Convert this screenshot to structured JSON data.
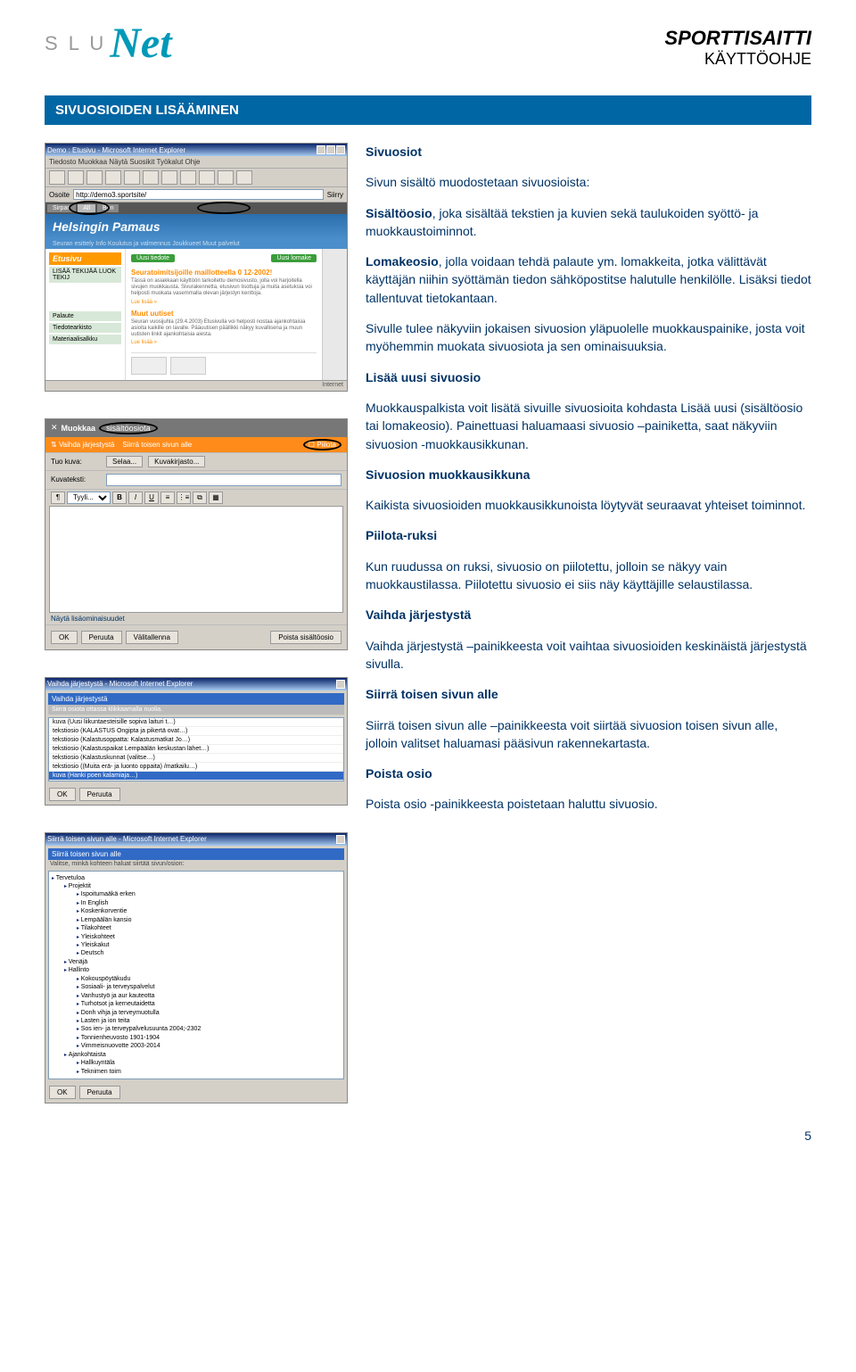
{
  "header": {
    "brand_slu": "S L U",
    "brand_net": "Net",
    "title1": "SPORTTISAITTI",
    "title2": "KÄYTTÖOHJE"
  },
  "section_bar": "SIVUOSIOIDEN LISÄÄMINEN",
  "body": {
    "h1": "Sivuosiot",
    "p1a": "Sivun sisältö muodostetaan sivuosioista:",
    "p2": "Sisältöosio, joka sisältää tekstien ja  kuvien sekä taulukoiden syöttö- ja muokkaustoiminnot.",
    "p3": "Lomakeosio, jolla voidaan tehdä palaute ym. lomakkeita, jotka välittävät käyttäjän niihin syöttämän tiedon sähköpostitse halutulle henkilölle. Lisäksi tiedot tallentuvat tietokantaan.",
    "p4": "Sivulle tulee näkyviin jokaisen sivuosion yläpuolelle muokkauspainike, josta voit myöhemmin muokata sivuosiota ja sen ominaisuuksia.",
    "h2": "Lisää uusi sivuosio",
    "p5": "Muokkauspalkista voit lisätä sivuille sivuosioita kohdasta Lisää uusi (sisältöosio tai lomakeosio). Painettuasi haluamaasi sivuosio –painiketta, saat näkyviin sivuosion -muokkausikkunan.",
    "h3": "Sivuosion muokkausikkuna",
    "p6": "Kaikista sivuosioiden muokkausikkunoista löytyvät seuraavat yhteiset toiminnot.",
    "h4": "Piilota-ruksi",
    "p7": "Kun ruudussa on ruksi, sivuosio on piilotettu, jolloin se näkyy vain muokkaustilassa. Piilotettu sivuosio ei siis näy käyttäjille selaustilassa.",
    "h5": "Vaihda järjestystä",
    "p8": "Vaihda järjestystä –painikkeesta voit vaihtaa sivuosioiden keskinäistä järjestystä sivulla.",
    "h6": "Siirrä toisen sivun alle",
    "p9": "Siirrä toisen sivun alle –painikkeesta voit siirtää sivuosion toisen sivun alle, jolloin valitset haluamasi pääsivun rakennekartasta.",
    "h7": "Poista osio",
    "p10": "Poista osio -painikkeesta poistetaan haluttu sivuosio."
  },
  "scr1": {
    "title": "Demo : Etusivu - Microsoft Internet Explorer",
    "menu": "Tiedosto  Muokkaa  Näytä  Suosikit  Työkalut  Ohje",
    "addr_label": "Osoite",
    "addr_value": "http://demo3.sportsite/",
    "go": "Siirry",
    "tabs": [
      "Sirpan",
      "All",
      "Ben"
    ],
    "banner": "Helsingin Pamaus",
    "nav": "Seuran esittely    Info    Koulutus ja valmennus    Joukkueet    Muut palvelut",
    "side_title": "Etusivu",
    "side_items": [
      "LISÄÄ TEKIJÄÄ LUOK TEKIJ",
      "Palaute",
      "Tiedotearkisto",
      "Materiaalisalkku"
    ],
    "green1": "Uusi tiedote",
    "green2": "Uusi lomake",
    "content_h1": "Seuratoimitsijoille maillotteella 0 12-2002!",
    "content_t1": "Tässä on asiakkaan käyttöön tarkoitettu demosivusto, jolla voi harjoitella sivujen muokkausta. Sivurakennetta, etusivun lisottuja ja muita asetuksia voi helposti muokata vasemmalla olevan järjestyn kenttoja.",
    "content_link": "Lue lisää »",
    "content_h2": "Muut uutiset",
    "content_t2": "Seuran vuosijuhla (29.4.2003) Etusivulla voi helposti nostaa ajankohtaisia asioita kaikille on lavalle. Pääuutisen päällikki näkyy kuvallisena ja muun uutisten linkit ajankohtaisia aiesta.",
    "content_link2": "Lue lisää »",
    "footer": "Internet"
  },
  "scr2": {
    "hdr_icon": "✕",
    "hdr_label": "Muokkaa",
    "hdr_label2": "sisältöosiota",
    "orange_left_icon": "⇅",
    "orange_left": "Vaihda järjestystä",
    "orange_mid": "Siirrä toisen sivun alle",
    "orange_right": "Piilota",
    "row1_label": "Tuo kuva:",
    "row1_btn1": "Selaa...",
    "row1_btn2": "Kuvakirjasto...",
    "row2_label": "Kuvateksti:",
    "fmt_sel": "Tyyli...",
    "link_more": "Näytä lisäominaisuudet",
    "btn_ok": "OK",
    "btn_cancel": "Peruuta",
    "btn_save": "Välitallenna",
    "btn_delete": "Poista sisältöosio"
  },
  "scr3": {
    "title": "Vaihda järjestystä - Microsoft Internet Explorer",
    "bar": "Vaihda järjestystä",
    "hint": "Siirrä osiota ottassa klikkaamalla nuolia.",
    "items": [
      "kuva          (Uusi liikuntaesteisille sopiva laituri t…)",
      "tekstiosio    (KALASTUS Ongipta ja pikertä ovat…)",
      "tekstiosio    (Kalastusoppatta: Kalastusmatkat Jo…)",
      "tekstiosio    (Kalastuspaikat Lempäälän keskustan lähet…)",
      "tekstiosio    (Kalastuskunnat (valitse…)",
      "tekstiosio    ((Muita erä- ja luonto oppaita) /matkailu…)",
      "kuva          (Hanki poen kalamiaja…)"
    ],
    "highlight_idx": 6,
    "btn_ok": "OK",
    "btn_cancel": "Peruuta"
  },
  "scr4": {
    "title": "Siirrä toisen sivun alle - Microsoft Internet Explorer",
    "bar": "Siirrä toisen sivun alle",
    "hint": "Valitse, minkä kohteen haluat siirtää sivun/osion:",
    "tree": [
      {
        "lv": 0,
        "t": "Tervetuloa"
      },
      {
        "lv": 1,
        "t": "Projektit"
      },
      {
        "lv": 2,
        "t": "Ispoitumaäkä erken"
      },
      {
        "lv": 2,
        "t": "In English"
      },
      {
        "lv": 2,
        "t": "Koskenkorventie"
      },
      {
        "lv": 2,
        "t": "Lempäälän kansio"
      },
      {
        "lv": 2,
        "t": "Tilakohteet"
      },
      {
        "lv": 2,
        "t": "Yleiskohteet"
      },
      {
        "lv": 2,
        "t": "Yleiskakut"
      },
      {
        "lv": 2,
        "t": "Deutsch"
      },
      {
        "lv": 1,
        "t": "Venäjä"
      },
      {
        "lv": 1,
        "t": "Hallinto"
      },
      {
        "lv": 2,
        "t": "Kokouspöytäkudu"
      },
      {
        "lv": 2,
        "t": "Sosiaali- ja terveyspalvelut"
      },
      {
        "lv": 2,
        "t": "Vanhustyö ja aur kauteotta"
      },
      {
        "lv": 2,
        "t": "Turhotsot ja kerneutaidetta"
      },
      {
        "lv": 2,
        "t": "Donh vihja ja  terveymuotulla"
      },
      {
        "lv": 2,
        "t": "Lasten ja ion teita"
      },
      {
        "lv": 2,
        "t": "Sos ien- ja terveypalvelusuunta 2004;-2302"
      },
      {
        "lv": 2,
        "t": "Tonnienheuvosto 1901-1904"
      },
      {
        "lv": 2,
        "t": "Vimmeisnuovotte 2003-2014"
      },
      {
        "lv": 1,
        "t": "Ajankohtaista"
      },
      {
        "lv": 2,
        "t": "Hallkuyntäla"
      },
      {
        "lv": 2,
        "t": "Teknimen toim"
      }
    ],
    "btn_ok": "OK",
    "btn_cancel": "Peruuta"
  },
  "page_num": "5"
}
